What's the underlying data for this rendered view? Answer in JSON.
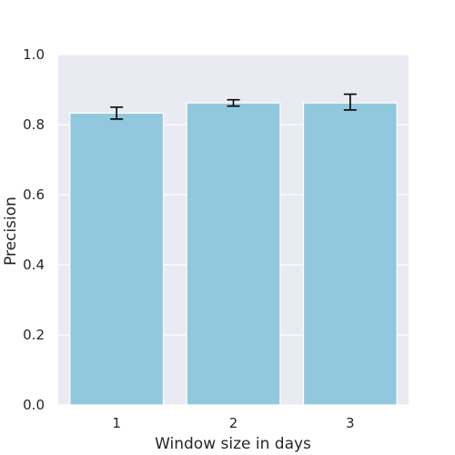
{
  "chart_data": {
    "type": "bar",
    "categories": [
      "1",
      "2",
      "3"
    ],
    "values": [
      0.833,
      0.862,
      0.862
    ],
    "error_low": [
      0.816,
      0.853,
      0.842
    ],
    "error_high": [
      0.85,
      0.871,
      0.887
    ],
    "xlabel": "Window size in days",
    "ylabel": "Precision",
    "ylim": [
      0.0,
      1.0
    ],
    "yticks": [
      "0.0",
      "0.2",
      "0.4",
      "0.6",
      "0.8",
      "1.0"
    ],
    "grid": true,
    "colors": {
      "bar": "#92C8DD",
      "plot_background": "#EAEAF2",
      "grid": "#FFFFFF",
      "error_bar": "#000000",
      "text": "#262626"
    }
  }
}
